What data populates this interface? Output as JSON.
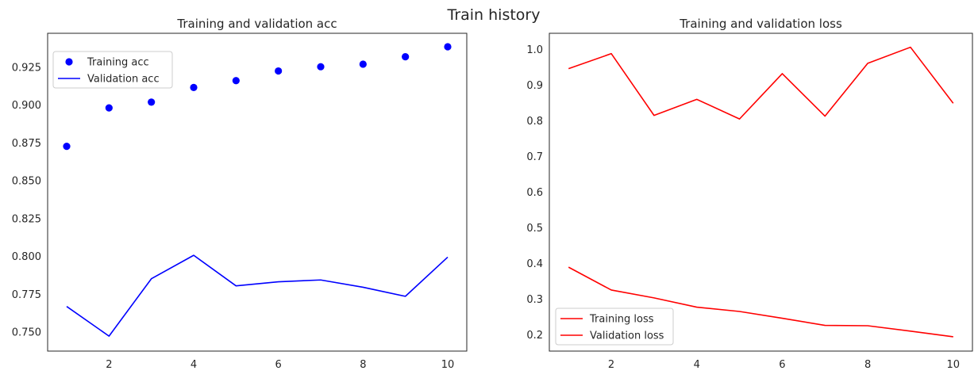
{
  "figure": {
    "title": "Train history"
  },
  "chart_data": [
    {
      "type": "line",
      "title": "Training and validation acc",
      "xlabel": "",
      "ylabel": "",
      "xlim": [
        0.55,
        10.45
      ],
      "ylim": [
        0.7375,
        0.9475
      ],
      "xticks": [
        2,
        4,
        6,
        8,
        10
      ],
      "yticks": [
        0.75,
        0.775,
        0.8,
        0.825,
        0.85,
        0.875,
        0.9,
        0.925
      ],
      "ytick_labels": [
        "0.750",
        "0.775",
        "0.800",
        "0.825",
        "0.850",
        "0.875",
        "0.900",
        "0.925"
      ],
      "grid": false,
      "legend": "upper-left",
      "x": [
        1,
        2,
        3,
        4,
        5,
        6,
        7,
        8,
        9,
        10
      ],
      "series": [
        {
          "name": "Training acc",
          "style": "points",
          "color": "#0000ff",
          "values": [
            0.8728,
            0.8982,
            0.902,
            0.9117,
            0.9162,
            0.9226,
            0.9254,
            0.9271,
            0.932,
            0.9386
          ]
        },
        {
          "name": "Validation acc",
          "style": "line",
          "color": "#0000ff",
          "values": [
            0.767,
            0.7474,
            0.7853,
            0.8008,
            0.7806,
            0.7833,
            0.7845,
            0.7797,
            0.7737,
            0.7996
          ]
        }
      ]
    },
    {
      "type": "line",
      "title": "Training and validation loss",
      "xlabel": "",
      "ylabel": "",
      "xlim": [
        0.55,
        10.45
      ],
      "ylim": [
        0.155,
        1.045
      ],
      "xticks": [
        2,
        4,
        6,
        8,
        10
      ],
      "yticks": [
        0.2,
        0.3,
        0.4,
        0.5,
        0.6,
        0.7,
        0.8,
        0.9,
        1.0
      ],
      "ytick_labels": [
        "0.2",
        "0.3",
        "0.4",
        "0.5",
        "0.6",
        "0.7",
        "0.8",
        "0.9",
        "1.0"
      ],
      "grid": false,
      "legend": "lower-left",
      "x": [
        1,
        2,
        3,
        4,
        5,
        6,
        7,
        8,
        9,
        10
      ],
      "series": [
        {
          "name": "Training loss",
          "style": "line",
          "color": "#ff0000",
          "values": [
            0.39,
            0.326,
            0.304,
            0.278,
            0.266,
            0.247,
            0.227,
            0.226,
            0.211,
            0.195
          ]
        },
        {
          "name": "Validation loss",
          "style": "line",
          "color": "#ff0000",
          "values": [
            0.946,
            0.988,
            0.815,
            0.86,
            0.805,
            0.932,
            0.813,
            0.961,
            1.006,
            0.849
          ]
        }
      ]
    }
  ]
}
